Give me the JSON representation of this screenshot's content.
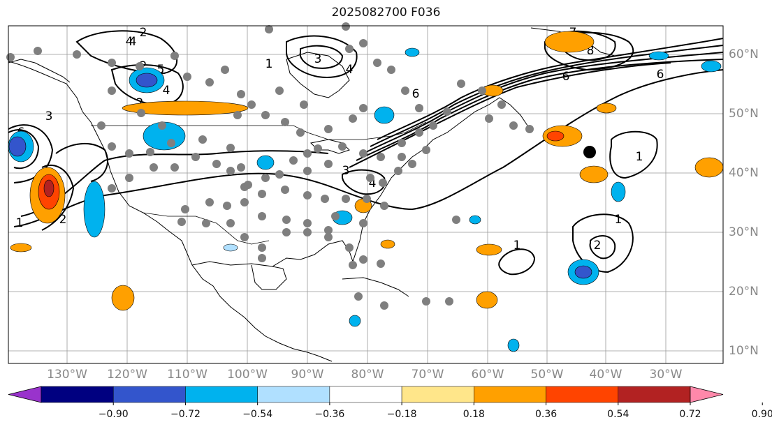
{
  "title": "2025082700 F036",
  "map": {
    "lon_labels": [
      "130°W",
      "120°W",
      "110°W",
      "100°W",
      "90°W",
      "80°W",
      "70°W",
      "60°W",
      "50°W",
      "40°W",
      "30°W"
    ],
    "lat_labels": [
      "60°N",
      "50°N",
      "40°N",
      "30°N",
      "20°N",
      "10°N"
    ],
    "contour_labels": [
      "4",
      "2",
      "5",
      "2",
      "3",
      "2",
      "4",
      "6",
      "3",
      "4",
      "1",
      "2",
      "1",
      "3",
      "4",
      "6",
      "1",
      "6",
      "1",
      "2",
      "1",
      "7",
      "8",
      "6",
      "4"
    ]
  },
  "colorbar": {
    "tick_labels": [
      "−0.90",
      "−0.72",
      "−0.54",
      "−0.36",
      "−0.18",
      "0.18",
      "0.36",
      "0.54",
      "0.72",
      "0.90"
    ],
    "colors": [
      "#9933cc",
      "#000080",
      "#3355cc",
      "#00b2ee",
      "#b0e0ff",
      "#ffffff",
      "#ffe68a",
      "#ffa000",
      "#ff4400",
      "#b22222",
      "#ff88aa"
    ]
  }
}
